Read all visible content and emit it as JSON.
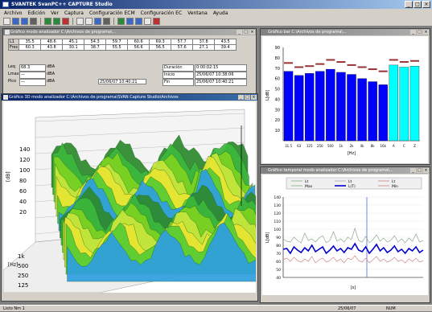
{
  "app": {
    "title": "SVANTEK SvanPC++ CAPTURE Studio",
    "menus": [
      "Archivo",
      "Edición",
      "Ver",
      "Captura",
      "Configuración ECM",
      "Configuración EC",
      "Ventana",
      "Ayuda"
    ]
  },
  "toolbar": {
    "buttons": [
      "new",
      "open",
      "save",
      "print",
      "capture",
      "run",
      "stop",
      "cut",
      "copy",
      "zoom",
      "settings",
      "graph-3d",
      "bar",
      "line",
      "table",
      "delete"
    ]
  },
  "window_table": {
    "title": "Gráfico modo analizador C:\\Archivos de programa\\...",
    "rows": [
      {
        "label": "L1",
        "cells": [
          "35.5",
          "48.6",
          "45.1",
          "54.3",
          "59.7",
          "60.6",
          "69.3",
          "57.7",
          "37.8",
          "43.5"
        ]
      },
      {
        "label": "Fres",
        "cells": [
          "60.3",
          "43.8",
          "30.1",
          "38.7",
          "55.5",
          "56.6",
          "56.5",
          "57.6",
          "27.1",
          "39.4"
        ]
      }
    ],
    "fields": [
      {
        "label": "Leq",
        "value": "68.3",
        "unit": "dBA"
      },
      {
        "label": "Lmax",
        "value": "—",
        "unit": "dBA"
      },
      {
        "label": "Pico",
        "value": "—",
        "unit": "dBA"
      }
    ],
    "time_field": "25/06/07 10:40:21",
    "right_fields": [
      {
        "label": "Duración",
        "value": "0:00:02:15"
      },
      {
        "label": "Inicio",
        "value": "25/06/07 10:38:06"
      },
      {
        "label": "Fin",
        "value": "25/06/07 10:40:21"
      }
    ]
  },
  "window_3d": {
    "title": "Gráfico 3D modo analizador C:\\Archivos de programa\\SVAN Capture Studio\\Archivos",
    "z_ticks": [
      "140",
      "120",
      "100",
      "80",
      "60",
      "40",
      "20"
    ],
    "z_label": "[dB]",
    "f_ticks": [
      "1k",
      "500",
      "250",
      "125"
    ],
    "f_label": "[Hz]"
  },
  "window_bar": {
    "title": "Gráfico bar C:\\Archivos de programa\\...",
    "colors": {
      "bar_main": "#0000ff",
      "bar_total": "#00ffff",
      "marker": "#993333"
    },
    "chart_data": {
      "type": "bar",
      "categories": [
        "31.5",
        "63",
        "125",
        "250",
        "500",
        "1k",
        "2k",
        "4k",
        "8k",
        "16k",
        "A",
        "C",
        "Z"
      ],
      "values": [
        67,
        63,
        65,
        67,
        69,
        66,
        64,
        60,
        57,
        54,
        73,
        71,
        72
      ],
      "max_values": [
        75,
        71,
        72,
        74,
        78,
        76,
        73,
        71,
        69,
        67,
        78,
        76,
        77
      ],
      "y_ticks": [
        "90",
        "80",
        "70",
        "60",
        "50",
        "40",
        "30",
        "20",
        "10"
      ],
      "ylim": [
        0,
        90
      ],
      "ylabel": "L[dB]",
      "xlabel": "[Hz]"
    }
  },
  "window_line": {
    "title": "Gráfico temporal modo analizador C:\\Archivos de programa\\...",
    "legend": [
      {
        "name": "Lt",
        "color": "#88aa88"
      },
      {
        "name": "Lt",
        "color": "#aaaaaa"
      },
      {
        "name": "Lt",
        "color": "#c08888"
      },
      {
        "name": "Max",
        "color": "#88aa88"
      },
      {
        "name": "L(T)",
        "color": "#0000cc"
      },
      {
        "name": "Min",
        "color": "#cc8888"
      }
    ],
    "chart_data": {
      "type": "line",
      "y_ticks": [
        "140",
        "130",
        "120",
        "110",
        "100",
        "90",
        "80",
        "70",
        "60",
        "50",
        "40"
      ],
      "ylim": [
        40,
        140
      ],
      "ylabel": "L[dB]",
      "xlabel": "[s]",
      "series": [
        {
          "name": "L(T)",
          "values": [
            75,
            76,
            70,
            78,
            74,
            71,
            77,
            73,
            80,
            72,
            75,
            78,
            70,
            74,
            79,
            73,
            76,
            71,
            77,
            75,
            82,
            74,
            72,
            78,
            70,
            75,
            81,
            73,
            77,
            71,
            74,
            79,
            72,
            75,
            70,
            76,
            73,
            78,
            71,
            74
          ]
        },
        {
          "name": "Max",
          "values": [
            88,
            85,
            84,
            90,
            86,
            83,
            95,
            86,
            88,
            84,
            89,
            92,
            83,
            86,
            97,
            85,
            88,
            84,
            90,
            87,
            101,
            86,
            84,
            91,
            83,
            87,
            93,
            85,
            89,
            84,
            86,
            92,
            84,
            88,
            83,
            89,
            85,
            94,
            84,
            86
          ]
        },
        {
          "name": "Min",
          "values": [
            62,
            64,
            60,
            65,
            61,
            59,
            63,
            60,
            66,
            58,
            62,
            64,
            59,
            61,
            65,
            60,
            63,
            58,
            64,
            62,
            67,
            61,
            59,
            64,
            58,
            62,
            66,
            60,
            63,
            59,
            61,
            65,
            60,
            62,
            58,
            63,
            60,
            64,
            59,
            61
          ]
        }
      ]
    }
  },
  "status": {
    "left": "Listo Nm 1",
    "mid": "25/06/07",
    "right": "NUM"
  }
}
